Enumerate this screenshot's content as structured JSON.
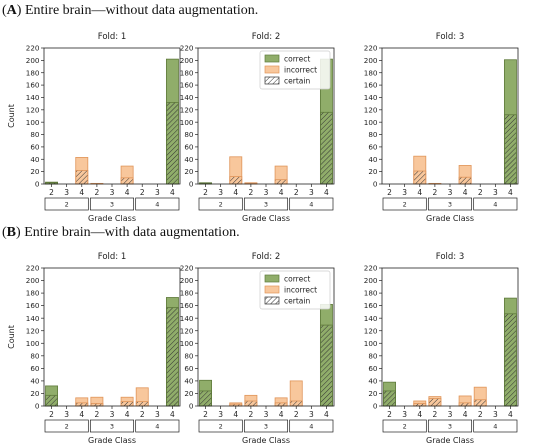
{
  "sections": [
    {
      "label": "A",
      "title": "Entire brain—without data augmentation."
    },
    {
      "label": "B",
      "title": "Entire brain—with data augmentation."
    }
  ],
  "colors": {
    "correct": "#90ad6a",
    "correct_edge": "#5f7a3b",
    "incorrect": "#f8c79c",
    "incorrect_edge": "#e0955a",
    "hatch": "#333333"
  },
  "chart_data": [
    {
      "type": "bar",
      "section": "A",
      "title": "Fold: 1",
      "xlabel": "Grade Class",
      "ylabel": "Count",
      "ylim": [
        0,
        220
      ],
      "yticks": [
        0,
        20,
        40,
        60,
        80,
        100,
        120,
        140,
        160,
        180,
        200,
        220
      ],
      "x_ticks": [
        "2",
        "3",
        "4",
        "2",
        "3",
        "4",
        "2",
        "3",
        "4"
      ],
      "groups": [
        "2",
        "3",
        "4"
      ],
      "legend": null,
      "bars": [
        {
          "group": "2",
          "pred": "2",
          "type": "correct",
          "total": 3,
          "certain": 2
        },
        {
          "group": "2",
          "pred": "3",
          "type": "incorrect",
          "total": 0,
          "certain": 0
        },
        {
          "group": "2",
          "pred": "4",
          "type": "incorrect",
          "total": 43,
          "certain": 22
        },
        {
          "group": "3",
          "pred": "2",
          "type": "incorrect",
          "total": 1,
          "certain": 0
        },
        {
          "group": "3",
          "pred": "3",
          "type": "correct",
          "total": 0,
          "certain": 0
        },
        {
          "group": "3",
          "pred": "4",
          "type": "incorrect",
          "total": 29,
          "certain": 10
        },
        {
          "group": "4",
          "pred": "2",
          "type": "incorrect",
          "total": 0,
          "certain": 0
        },
        {
          "group": "4",
          "pred": "3",
          "type": "incorrect",
          "total": 0,
          "certain": 0
        },
        {
          "group": "4",
          "pred": "4",
          "type": "correct",
          "total": 202,
          "certain": 132
        }
      ]
    },
    {
      "type": "bar",
      "section": "A",
      "title": "Fold: 2",
      "xlabel": "Grade Class",
      "ylabel": "",
      "ylim": [
        0,
        220
      ],
      "yticks": [
        0,
        20,
        40,
        60,
        80,
        100,
        120,
        140,
        160,
        180,
        200,
        220
      ],
      "x_ticks": [
        "2",
        "3",
        "4",
        "2",
        "3",
        "4",
        "2",
        "3",
        "4"
      ],
      "groups": [
        "2",
        "3",
        "4"
      ],
      "legend": [
        "correct",
        "incorrect",
        "certain"
      ],
      "bars": [
        {
          "group": "2",
          "pred": "2",
          "type": "correct",
          "total": 2,
          "certain": 1
        },
        {
          "group": "2",
          "pred": "3",
          "type": "incorrect",
          "total": 0,
          "certain": 0
        },
        {
          "group": "2",
          "pred": "4",
          "type": "incorrect",
          "total": 44,
          "certain": 12
        },
        {
          "group": "3",
          "pred": "2",
          "type": "incorrect",
          "total": 2,
          "certain": 1
        },
        {
          "group": "3",
          "pred": "3",
          "type": "correct",
          "total": 0,
          "certain": 0
        },
        {
          "group": "3",
          "pred": "4",
          "type": "incorrect",
          "total": 29,
          "certain": 7
        },
        {
          "group": "4",
          "pred": "2",
          "type": "incorrect",
          "total": 0,
          "certain": 0
        },
        {
          "group": "4",
          "pred": "3",
          "type": "incorrect",
          "total": 0,
          "certain": 0
        },
        {
          "group": "4",
          "pred": "4",
          "type": "correct",
          "total": 202,
          "certain": 116
        }
      ]
    },
    {
      "type": "bar",
      "section": "A",
      "title": "Fold: 3",
      "xlabel": "Grade Class",
      "ylabel": "",
      "ylim": [
        0,
        220
      ],
      "yticks": [
        0,
        20,
        40,
        60,
        80,
        100,
        120,
        140,
        160,
        180,
        200,
        220
      ],
      "x_ticks": [
        "2",
        "3",
        "4",
        "2",
        "3",
        "4",
        "2",
        "3",
        "4"
      ],
      "groups": [
        "2",
        "3",
        "4"
      ],
      "legend": null,
      "bars": [
        {
          "group": "2",
          "pred": "2",
          "type": "correct",
          "total": 0,
          "certain": 0
        },
        {
          "group": "2",
          "pred": "3",
          "type": "incorrect",
          "total": 0,
          "certain": 0
        },
        {
          "group": "2",
          "pred": "4",
          "type": "incorrect",
          "total": 45,
          "certain": 21
        },
        {
          "group": "3",
          "pred": "2",
          "type": "incorrect",
          "total": 1,
          "certain": 0
        },
        {
          "group": "3",
          "pred": "3",
          "type": "correct",
          "total": 0,
          "certain": 0
        },
        {
          "group": "3",
          "pred": "4",
          "type": "incorrect",
          "total": 30,
          "certain": 11
        },
        {
          "group": "4",
          "pred": "2",
          "type": "incorrect",
          "total": 0,
          "certain": 0
        },
        {
          "group": "4",
          "pred": "3",
          "type": "incorrect",
          "total": 0,
          "certain": 0
        },
        {
          "group": "4",
          "pred": "4",
          "type": "correct",
          "total": 201,
          "certain": 112
        }
      ]
    },
    {
      "type": "bar",
      "section": "B",
      "title": "Fold: 1",
      "xlabel": "Grade Class",
      "ylabel": "Count",
      "ylim": [
        0,
        220
      ],
      "yticks": [
        0,
        20,
        40,
        60,
        80,
        100,
        120,
        140,
        160,
        180,
        200,
        220
      ],
      "x_ticks": [
        "2",
        "3",
        "4",
        "2",
        "3",
        "4",
        "2",
        "3",
        "4"
      ],
      "groups": [
        "2",
        "3",
        "4"
      ],
      "legend": null,
      "bars": [
        {
          "group": "2",
          "pred": "2",
          "type": "correct",
          "total": 32,
          "certain": 17
        },
        {
          "group": "2",
          "pred": "3",
          "type": "incorrect",
          "total": 0,
          "certain": 0
        },
        {
          "group": "2",
          "pred": "4",
          "type": "incorrect",
          "total": 13,
          "certain": 5
        },
        {
          "group": "3",
          "pred": "2",
          "type": "incorrect",
          "total": 14,
          "certain": 4
        },
        {
          "group": "3",
          "pred": "3",
          "type": "correct",
          "total": 0,
          "certain": 0
        },
        {
          "group": "3",
          "pred": "4",
          "type": "incorrect",
          "total": 14,
          "certain": 7
        },
        {
          "group": "4",
          "pred": "2",
          "type": "incorrect",
          "total": 29,
          "certain": 7
        },
        {
          "group": "4",
          "pred": "3",
          "type": "incorrect",
          "total": 0,
          "certain": 0
        },
        {
          "group": "4",
          "pred": "4",
          "type": "correct",
          "total": 173,
          "certain": 157
        }
      ]
    },
    {
      "type": "bar",
      "section": "B",
      "title": "Fold: 2",
      "xlabel": "Grade Class",
      "ylabel": "",
      "ylim": [
        0,
        220
      ],
      "yticks": [
        0,
        20,
        40,
        60,
        80,
        100,
        120,
        140,
        160,
        180,
        200,
        220
      ],
      "x_ticks": [
        "2",
        "3",
        "4",
        "2",
        "3",
        "4",
        "2",
        "3",
        "4"
      ],
      "groups": [
        "2",
        "3",
        "4"
      ],
      "legend": [
        "correct",
        "incorrect",
        "certain"
      ],
      "bars": [
        {
          "group": "2",
          "pred": "2",
          "type": "correct",
          "total": 41,
          "certain": 24
        },
        {
          "group": "2",
          "pred": "3",
          "type": "incorrect",
          "total": 0,
          "certain": 0
        },
        {
          "group": "2",
          "pred": "4",
          "type": "incorrect",
          "total": 5,
          "certain": 3
        },
        {
          "group": "3",
          "pred": "2",
          "type": "incorrect",
          "total": 17,
          "certain": 8
        },
        {
          "group": "3",
          "pred": "3",
          "type": "correct",
          "total": 0,
          "certain": 0
        },
        {
          "group": "3",
          "pred": "4",
          "type": "incorrect",
          "total": 13,
          "certain": 5
        },
        {
          "group": "4",
          "pred": "2",
          "type": "incorrect",
          "total": 40,
          "certain": 8
        },
        {
          "group": "4",
          "pred": "3",
          "type": "incorrect",
          "total": 0,
          "certain": 0
        },
        {
          "group": "4",
          "pred": "4",
          "type": "correct",
          "total": 162,
          "certain": 129
        }
      ]
    },
    {
      "type": "bar",
      "section": "B",
      "title": "Fold: 3",
      "xlabel": "Grade Class",
      "ylabel": "",
      "ylim": [
        0,
        220
      ],
      "yticks": [
        0,
        20,
        40,
        60,
        80,
        100,
        120,
        140,
        160,
        180,
        200,
        220
      ],
      "x_ticks": [
        "2",
        "3",
        "4",
        "2",
        "3",
        "4",
        "2",
        "3",
        "4"
      ],
      "groups": [
        "2",
        "3",
        "4"
      ],
      "legend": null,
      "bars": [
        {
          "group": "2",
          "pred": "2",
          "type": "correct",
          "total": 38,
          "certain": 24
        },
        {
          "group": "2",
          "pred": "3",
          "type": "incorrect",
          "total": 0,
          "certain": 0
        },
        {
          "group": "2",
          "pred": "4",
          "type": "incorrect",
          "total": 8,
          "certain": 4
        },
        {
          "group": "3",
          "pred": "2",
          "type": "incorrect",
          "total": 15,
          "certain": 12
        },
        {
          "group": "3",
          "pred": "3",
          "type": "correct",
          "total": 0,
          "certain": 0
        },
        {
          "group": "3",
          "pred": "4",
          "type": "incorrect",
          "total": 16,
          "certain": 5
        },
        {
          "group": "4",
          "pred": "2",
          "type": "incorrect",
          "total": 30,
          "certain": 10
        },
        {
          "group": "4",
          "pred": "3",
          "type": "incorrect",
          "total": 0,
          "certain": 0
        },
        {
          "group": "4",
          "pred": "4",
          "type": "correct",
          "total": 172,
          "certain": 147
        }
      ]
    }
  ]
}
